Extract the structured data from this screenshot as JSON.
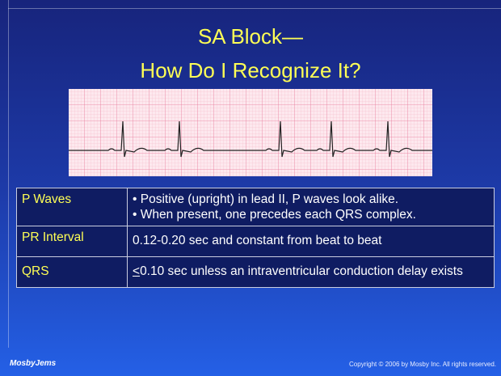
{
  "title": {
    "line1": "SA Block—",
    "line2": "How Do I Recognize It?"
  },
  "table": {
    "rows": [
      {
        "label": "P Waves",
        "bullets": [
          "• Positive (upright) in lead II, P waves look alike.",
          "• When present, one precedes each QRS complex."
        ]
      },
      {
        "label": "PR Interval",
        "text": "0.12-0.20 sec and constant from beat to beat"
      },
      {
        "label": "QRS",
        "symbol": "<",
        "text": "0.10 sec unless an intraventricular conduction delay exists"
      }
    ]
  },
  "footer": {
    "logo": "MosbyJems",
    "copyright": "Copyright © 2006 by Mosby Inc.  All rights reserved."
  }
}
